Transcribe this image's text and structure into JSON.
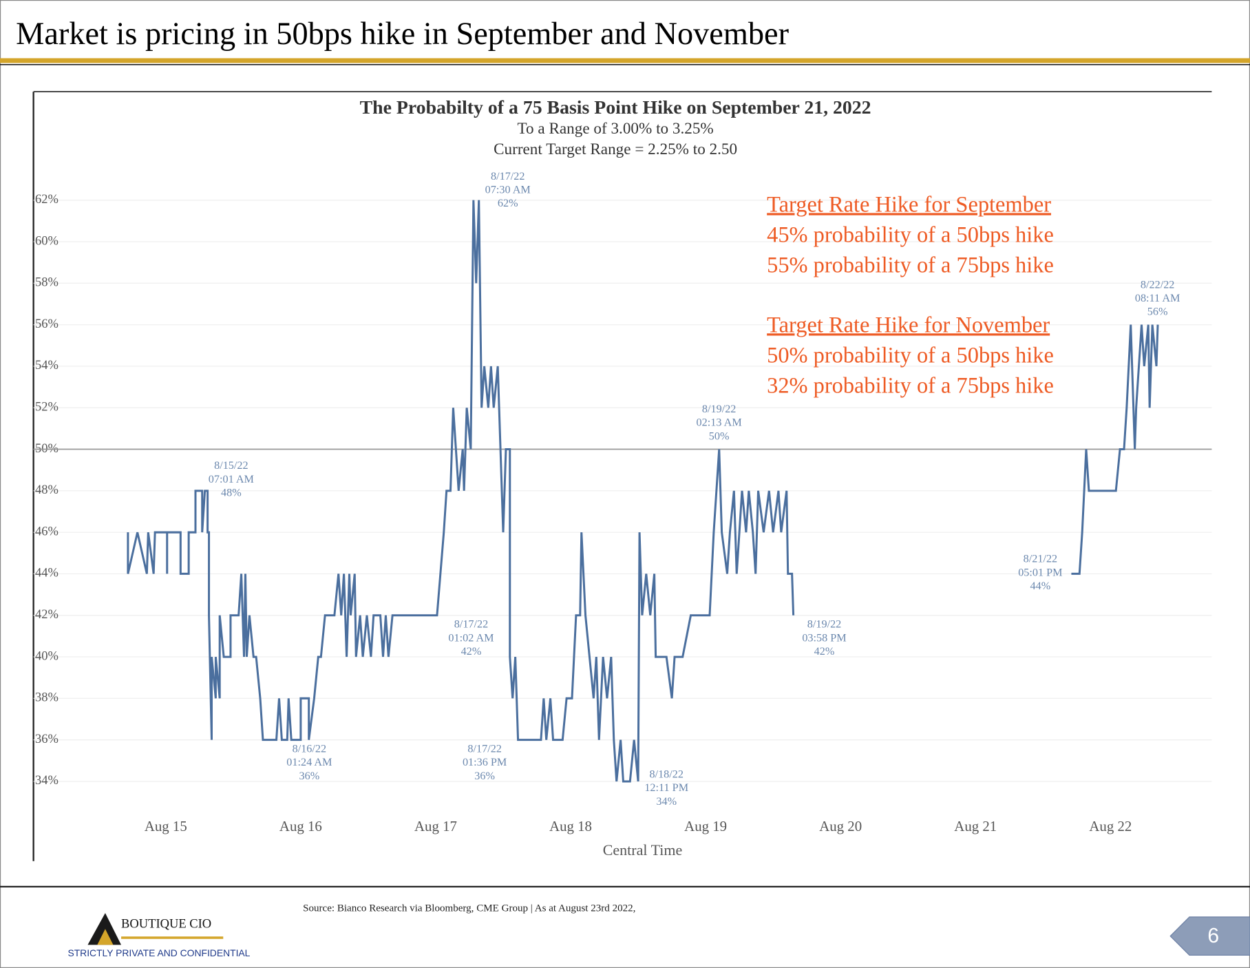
{
  "slide": {
    "title": "Market is pricing in 50bps hike in September and November",
    "source": "Source: Bianco Research via Bloomberg, CME Group | As at August 23rd 2022,",
    "logo": "BOUTIQUE CIO",
    "confidential": "STRICTLY PRIVATE AND CONFIDENTIAL",
    "page": "6",
    "callout": [
      {
        "heading": "Target Rate Hike for September",
        "lines": [
          "45% probability of a 50bps hike",
          "55% probability of a 75bps hike"
        ]
      },
      {
        "heading": "Target Rate Hike for November",
        "lines": [
          "50% probability of a 50bps hike",
          "32% probability of a 75bps hike"
        ]
      }
    ]
  },
  "chart_data": {
    "type": "line",
    "title": "The Probabilty of a 75 Basis Point Hike on September 21, 2022",
    "subtitle": [
      "To a Range of 3.00% to 3.25%",
      "Current Target Range = 2.25% to 2.50"
    ],
    "xlabel": "Central Time",
    "color": "#4b6f9e",
    "grid": true,
    "reference_line": 50,
    "xlim": [
      14.02,
      22.75
    ],
    "ylim": [
      32.5,
      63.5
    ],
    "xticks": [
      {
        "value": 15,
        "label": "Aug 15"
      },
      {
        "value": 16,
        "label": "Aug 16"
      },
      {
        "value": 17,
        "label": "Aug 17"
      },
      {
        "value": 18,
        "label": "Aug 18"
      },
      {
        "value": 19,
        "label": "Aug 19"
      },
      {
        "value": 20,
        "label": "Aug 20"
      },
      {
        "value": 21,
        "label": "Aug 21"
      },
      {
        "value": 22,
        "label": "Aug 22"
      }
    ],
    "yticks": [
      {
        "value": 34,
        "label": "34%"
      },
      {
        "value": 36,
        "label": "36%"
      },
      {
        "value": 38,
        "label": "38%"
      },
      {
        "value": 40,
        "label": "40%"
      },
      {
        "value": 42,
        "label": "42%"
      },
      {
        "value": 44,
        "label": "44%"
      },
      {
        "value": 46,
        "label": "46%"
      },
      {
        "value": 48,
        "label": "48%"
      },
      {
        "value": 50,
        "label": "50%"
      },
      {
        "value": 52,
        "label": "52%"
      },
      {
        "value": 54,
        "label": "54%"
      },
      {
        "value": 56,
        "label": "56%"
      },
      {
        "value": 58,
        "label": "58%"
      },
      {
        "value": 60,
        "label": "60%"
      },
      {
        "value": 62,
        "label": "62%"
      }
    ],
    "x": [
      14.72,
      14.72,
      14.79,
      14.86,
      14.87,
      14.91,
      14.92,
      15.01,
      15.01,
      15.01,
      15.11,
      15.11,
      15.17,
      15.17,
      15.22,
      15.22,
      15.27,
      15.27,
      15.29,
      15.31,
      15.31,
      15.32,
      15.32,
      15.34,
      15.34,
      15.37,
      15.37,
      15.4,
      15.4,
      15.43,
      15.48,
      15.48,
      15.54,
      15.56,
      15.58,
      15.59,
      15.6,
      15.62,
      15.65,
      15.67,
      15.7,
      15.72,
      15.82,
      15.84,
      15.86,
      15.9,
      15.91,
      15.93,
      16.0,
      16.0,
      16.06,
      16.06,
      16.1,
      16.13,
      16.15,
      16.18,
      16.25,
      16.28,
      16.3,
      16.32,
      16.34,
      16.36,
      16.37,
      16.4,
      16.41,
      16.44,
      16.46,
      16.49,
      16.52,
      16.54,
      16.59,
      16.61,
      16.63,
      16.65,
      16.68,
      17.01,
      17.06,
      17.08,
      17.11,
      17.13,
      17.15,
      17.17,
      17.2,
      17.21,
      17.23,
      17.26,
      17.28,
      17.3,
      17.32,
      17.34,
      17.36,
      17.39,
      17.41,
      17.43,
      17.46,
      17.48,
      17.5,
      17.52,
      17.55,
      17.55,
      17.57,
      17.59,
      17.61,
      17.78,
      17.8,
      17.82,
      17.85,
      17.87,
      17.94,
      17.97,
      18.01,
      18.04,
      18.07,
      18.08,
      18.11,
      18.14,
      18.17,
      18.19,
      18.21,
      18.24,
      18.27,
      18.3,
      18.32,
      18.34,
      18.37,
      18.39,
      18.44,
      18.47,
      18.5,
      18.51,
      18.53,
      18.56,
      18.59,
      18.62,
      18.63,
      18.71,
      18.75,
      18.77,
      18.83,
      18.89,
      19.03,
      19.06,
      19.1,
      19.12,
      19.16,
      19.18,
      19.21,
      19.23,
      19.27,
      19.3,
      19.32,
      19.35,
      19.37,
      19.39,
      19.43,
      19.47,
      19.5,
      19.54,
      19.56,
      19.6,
      19.61,
      19.64,
      19.65,
      null,
      21.71,
      21.77,
      21.79,
      21.82,
      21.84,
      22.04,
      22.07,
      22.1,
      22.12,
      22.15,
      22.18,
      22.19,
      22.23,
      22.25,
      22.28,
      22.29,
      22.31,
      22.34,
      22.35
    ],
    "values": [
      46,
      44,
      46,
      44,
      46,
      44,
      46,
      46,
      44,
      46,
      46,
      44,
      44,
      46,
      46,
      48,
      48,
      46,
      48,
      48,
      46,
      46,
      42,
      36,
      40,
      38,
      40,
      38,
      42,
      40,
      40,
      42,
      42,
      44,
      40,
      44,
      40,
      42,
      40,
      40,
      38,
      36,
      36,
      38,
      36,
      36,
      38,
      36,
      36,
      38,
      38,
      36,
      38,
      40,
      40,
      42,
      42,
      44,
      42,
      44,
      40,
      44,
      42,
      44,
      40,
      42,
      40,
      42,
      40,
      42,
      42,
      40,
      42,
      40,
      42,
      42,
      46,
      48,
      48,
      52,
      50,
      48,
      50,
      48,
      52,
      50,
      62,
      58,
      62,
      52,
      54,
      52,
      54,
      52,
      54,
      50,
      46,
      50,
      50,
      40,
      38,
      40,
      36,
      36,
      38,
      36,
      38,
      36,
      36,
      38,
      38,
      42,
      42,
      46,
      42,
      40,
      38,
      40,
      36,
      40,
      38,
      40,
      36,
      34,
      36,
      34,
      34,
      36,
      34,
      46,
      42,
      44,
      42,
      44,
      40,
      40,
      38,
      40,
      40,
      42,
      42,
      46,
      50,
      46,
      44,
      46,
      48,
      44,
      48,
      46,
      48,
      46,
      44,
      48,
      46,
      48,
      46,
      48,
      46,
      48,
      44,
      44,
      42,
      null,
      44,
      44,
      46,
      50,
      48,
      48,
      50,
      50,
      52,
      56,
      50,
      52,
      56,
      54,
      56,
      52,
      56,
      54,
      56
    ],
    "annotations": [
      {
        "lines": [
          "8/15/22",
          "07:01 AM",
          "48%"
        ]
      },
      {
        "lines": [
          "8/16/22",
          "01:24 AM",
          "36%"
        ]
      },
      {
        "lines": [
          "8/17/22",
          "07:30 AM",
          "62%"
        ]
      },
      {
        "lines": [
          "8/17/22",
          "01:02 AM",
          "42%"
        ]
      },
      {
        "lines": [
          "8/17/22",
          "01:36 PM",
          "36%"
        ]
      },
      {
        "lines": [
          "8/18/22",
          "12:11 PM",
          "34%"
        ]
      },
      {
        "lines": [
          "8/19/22",
          "02:13 AM",
          "50%"
        ]
      },
      {
        "lines": [
          "8/19/22",
          "03:58 PM",
          "42%"
        ]
      },
      {
        "lines": [
          "8/21/22",
          "05:01 PM",
          "44%"
        ]
      },
      {
        "lines": [
          "8/22/22",
          "08:11 AM",
          "56%"
        ]
      }
    ]
  }
}
